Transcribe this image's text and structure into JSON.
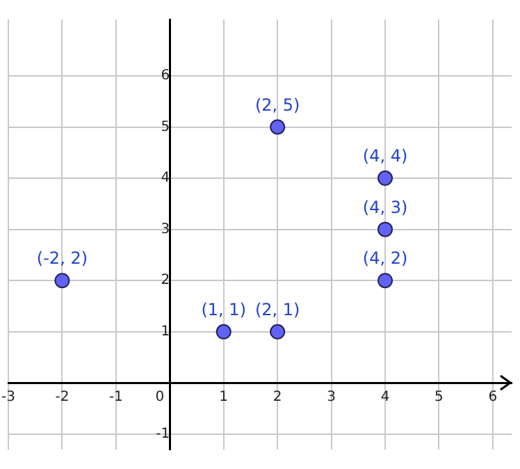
{
  "chart_data": {
    "type": "scatter",
    "x": [
      -2,
      1,
      2,
      2,
      4,
      4,
      4
    ],
    "values": [
      2,
      1,
      1,
      5,
      4,
      3,
      2
    ],
    "value_labels": [
      "(-2, 2)",
      "(1, 1)",
      "(2, 1)",
      "(2, 5)",
      "(4, 4)",
      "(4, 3)",
      "(4, 2)"
    ],
    "color": "#6262f5",
    "marker": "circle",
    "grid": true,
    "xlim": [
      -3,
      6.35
    ],
    "ylim": [
      -1.3,
      7.1
    ],
    "xticks": [
      -3,
      -2,
      -1,
      0,
      1,
      2,
      3,
      4,
      5,
      6
    ],
    "yticks": [
      -1,
      {
        "value": 0,
        "label": null
      },
      1,
      2,
      3,
      4,
      5,
      6
    ]
  }
}
